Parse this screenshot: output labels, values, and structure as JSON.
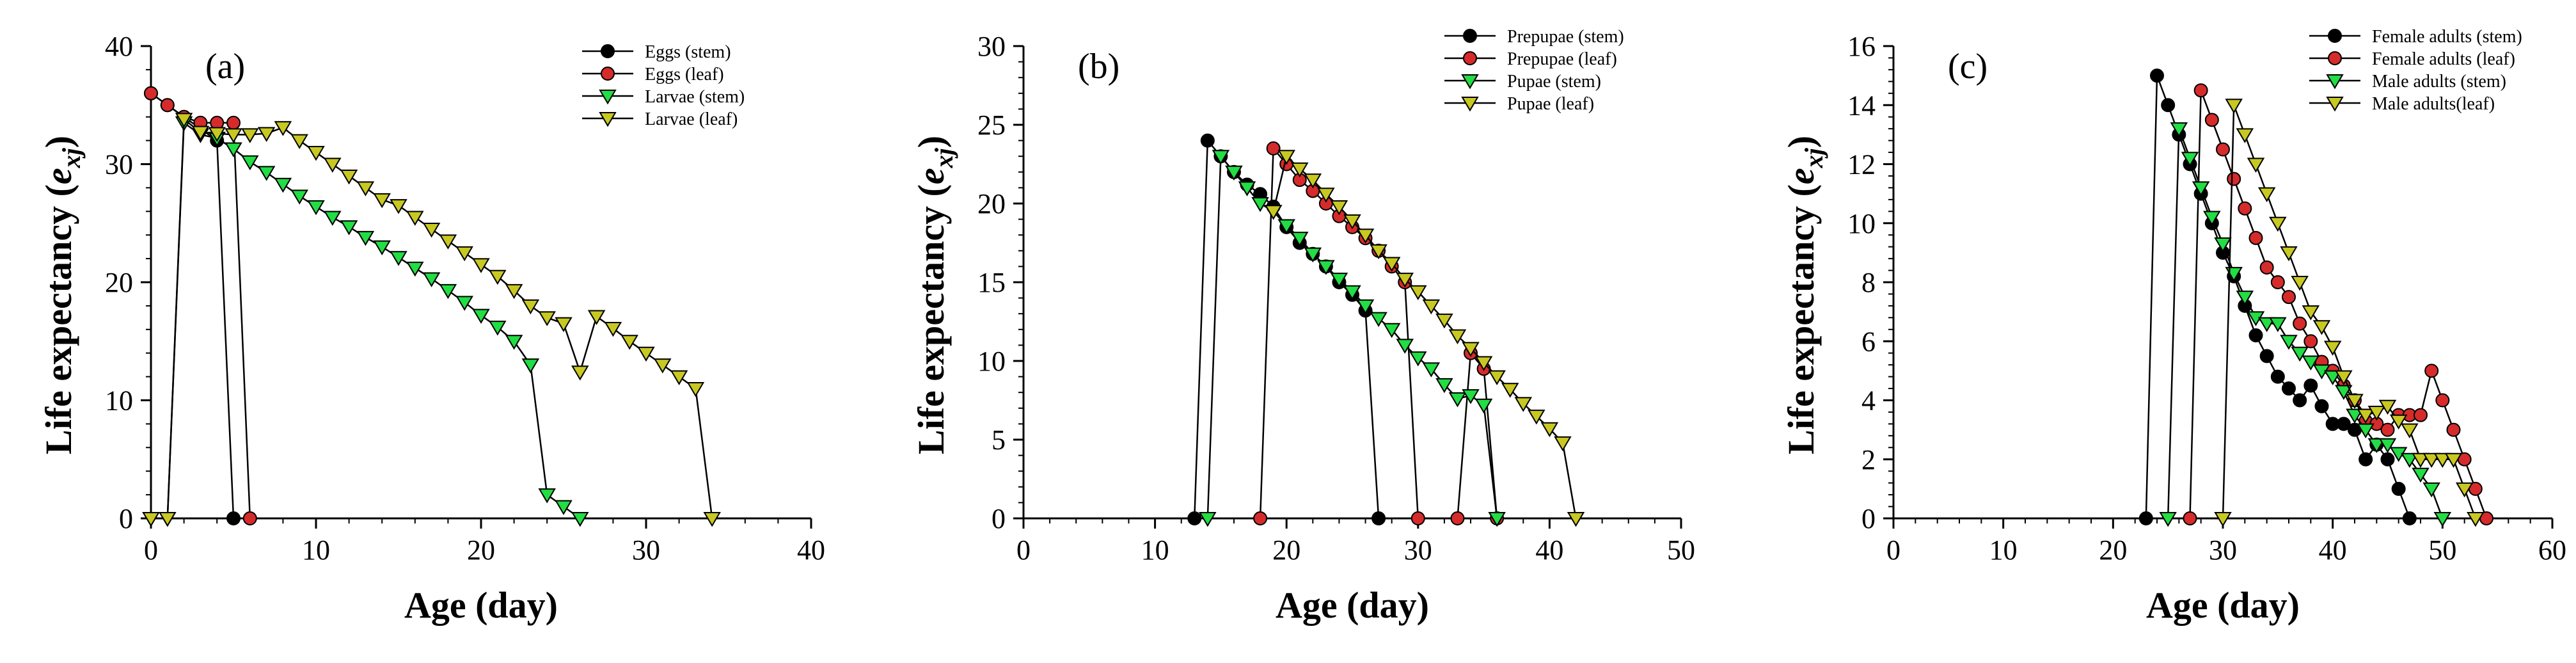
{
  "chart_data": [
    {
      "type": "line",
      "panel": "(a)",
      "xlabel": "Age (day)",
      "ylabel_main": "Life expectancy (",
      "ylabel_var": "e",
      "ylabel_sub": "xj",
      "ylabel_close": ")",
      "xlim": [
        0,
        40
      ],
      "ylim": [
        0,
        40
      ],
      "xticks": [
        0,
        10,
        20,
        30,
        40
      ],
      "yticks": [
        0,
        10,
        20,
        30,
        40
      ],
      "legend_position": "top-right",
      "series": [
        {
          "name": "Eggs (stem)",
          "marker": "circle",
          "color": "#000000",
          "x": [
            0,
            1,
            2,
            3,
            4,
            5
          ],
          "y": [
            36,
            35,
            34,
            33,
            32,
            0
          ]
        },
        {
          "name": "Eggs (leaf)",
          "marker": "circle",
          "color": "#d62b2b",
          "x": [
            0,
            1,
            2,
            3,
            4,
            5,
            6
          ],
          "y": [
            36,
            35,
            34,
            33.5,
            33.5,
            33.5,
            0
          ]
        },
        {
          "name": "Larvae (stem)",
          "marker": "triangle-down",
          "color": "#22dd44",
          "x": [
            0,
            1,
            2,
            3,
            4,
            5,
            6,
            7,
            8,
            9,
            10,
            11,
            12,
            13,
            14,
            15,
            16,
            17,
            18,
            19,
            20,
            21,
            22,
            23,
            24,
            25,
            26
          ],
          "y": [
            0,
            0,
            33.5,
            32.5,
            32.2,
            31.3,
            30.2,
            29.3,
            28.3,
            27.3,
            26.4,
            25.5,
            24.7,
            23.8,
            23,
            22.1,
            21.2,
            20.3,
            19.3,
            18.3,
            17.2,
            16.2,
            15,
            13,
            2,
            1,
            0
          ]
        },
        {
          "name": "Larvae (leaf)",
          "marker": "triangle-down",
          "color": "#c8c822",
          "x": [
            0,
            1,
            2,
            3,
            4,
            5,
            6,
            7,
            8,
            9,
            10,
            11,
            12,
            13,
            14,
            15,
            16,
            17,
            18,
            19,
            20,
            21,
            22,
            23,
            24,
            25,
            26,
            27,
            28,
            29,
            30,
            31,
            32,
            33,
            34
          ],
          "y": [
            0,
            0,
            33.8,
            32.7,
            32.6,
            32.5,
            32.5,
            32.6,
            33.1,
            32,
            31,
            30,
            29,
            28,
            27,
            26.5,
            25.5,
            24.5,
            23.5,
            22.5,
            21.5,
            20.5,
            19.3,
            18,
            17,
            16.5,
            12.4,
            17.1,
            16.1,
            15,
            14,
            13,
            12,
            11,
            0
          ]
        }
      ]
    },
    {
      "type": "line",
      "panel": "(b)",
      "xlabel": "Age (day)",
      "ylabel_main": "Life expectancy (",
      "ylabel_var": "e",
      "ylabel_sub": "xj",
      "ylabel_close": ")",
      "xlim": [
        0,
        50
      ],
      "ylim": [
        0,
        30
      ],
      "xticks": [
        0,
        10,
        20,
        30,
        40,
        50
      ],
      "yticks": [
        0,
        5,
        10,
        15,
        20,
        25,
        30
      ],
      "legend_position": "top-right",
      "series": [
        {
          "name": "Prepupae (stem)",
          "marker": "circle",
          "color": "#000000",
          "x": [
            13,
            14,
            15,
            16,
            17,
            18,
            19,
            20,
            21,
            22,
            23,
            24,
            25,
            26,
            27
          ],
          "y": [
            0,
            24,
            23,
            22,
            21.2,
            20.6,
            19.8,
            18.5,
            17.5,
            16.8,
            16,
            15,
            14.2,
            13.2,
            0
          ]
        },
        {
          "name": "Prepupae (leaf)",
          "marker": "circle",
          "color": "#d62b2b",
          "x": [
            18,
            19,
            20,
            21,
            22,
            23,
            24,
            25,
            26,
            27,
            28,
            29,
            30,
            33,
            34,
            35,
            36
          ],
          "y": [
            0,
            23.5,
            22.5,
            21.5,
            20.8,
            20,
            19.2,
            18.5,
            17.8,
            17,
            16,
            15,
            0,
            0,
            10.5,
            9.5,
            0
          ]
        },
        {
          "name": "Pupae (stem)",
          "marker": "triangle-down",
          "color": "#22dd44",
          "x": [
            14,
            15,
            16,
            17,
            18,
            19,
            20,
            21,
            22,
            23,
            24,
            25,
            26,
            27,
            28,
            29,
            30,
            31,
            32,
            33,
            34,
            35,
            36
          ],
          "y": [
            0,
            23,
            22,
            21,
            20,
            19.5,
            18.6,
            17.8,
            16.8,
            16,
            15.2,
            14.4,
            13.5,
            12.7,
            12,
            11,
            10.2,
            9.5,
            8.5,
            7.6,
            7.8,
            7.2,
            0
          ]
        },
        {
          "name": "Pupae (leaf)",
          "marker": "triangle-down",
          "color": "#c8c822",
          "x": [
            19,
            20,
            21,
            22,
            23,
            24,
            25,
            26,
            27,
            28,
            29,
            30,
            31,
            32,
            33,
            34,
            35,
            36,
            37,
            38,
            39,
            40,
            41,
            42
          ],
          "y": [
            19.5,
            23,
            22.2,
            21.5,
            20.6,
            19.8,
            18.9,
            18,
            17,
            16.2,
            15.2,
            14.4,
            13.5,
            12.6,
            11.6,
            10.8,
            9.9,
            9,
            8.2,
            7.3,
            6.5,
            5.7,
            4.8,
            0
          ]
        }
      ]
    },
    {
      "type": "line",
      "panel": "(c)",
      "xlabel": "Age (day)",
      "ylabel_main": "Life expectancy (",
      "ylabel_var": "e",
      "ylabel_sub": "xj",
      "ylabel_close": ")",
      "xlim": [
        0,
        60
      ],
      "ylim": [
        0,
        16
      ],
      "xticks": [
        0,
        10,
        20,
        30,
        40,
        50,
        60
      ],
      "yticks": [
        0,
        2,
        4,
        6,
        8,
        10,
        12,
        14,
        16
      ],
      "legend_position": "top-right",
      "series": [
        {
          "name": "Female adults (stem)",
          "marker": "circle",
          "color": "#000000",
          "x": [
            23,
            24,
            25,
            26,
            27,
            28,
            29,
            30,
            31,
            32,
            33,
            34,
            35,
            36,
            37,
            38,
            39,
            40,
            41,
            42,
            43,
            44,
            45,
            46,
            47
          ],
          "y": [
            0,
            15,
            14,
            13,
            12,
            11,
            10,
            9,
            8.2,
            7.2,
            6.2,
            5.5,
            4.8,
            4.4,
            4,
            4.5,
            3.8,
            3.2,
            3.2,
            3,
            2,
            2.5,
            2,
            1,
            0
          ]
        },
        {
          "name": "Female adults (leaf)",
          "marker": "circle",
          "color": "#d62b2b",
          "x": [
            27,
            28,
            29,
            30,
            31,
            32,
            33,
            34,
            35,
            36,
            37,
            38,
            39,
            40,
            41,
            42,
            43,
            44,
            45,
            46,
            47,
            48,
            49,
            50,
            51,
            52,
            53,
            54
          ],
          "y": [
            0,
            14.5,
            13.5,
            12.5,
            11.5,
            10.5,
            9.5,
            8.5,
            8,
            7.5,
            6.6,
            6,
            5.3,
            5,
            4.5,
            4,
            3.3,
            3.2,
            3,
            3.5,
            3.5,
            3.5,
            5,
            4,
            3,
            2,
            1,
            0
          ]
        },
        {
          "name": "Male adults (stem)",
          "marker": "triangle-down",
          "color": "#22dd44",
          "x": [
            25,
            26,
            27,
            28,
            29,
            30,
            31,
            32,
            33,
            34,
            35,
            36,
            37,
            38,
            39,
            40,
            41,
            42,
            43,
            44,
            45,
            46,
            47,
            48,
            49,
            50
          ],
          "y": [
            0,
            13.2,
            12.2,
            11.2,
            10.2,
            9.3,
            8.3,
            7.5,
            6.8,
            6.6,
            6.6,
            6,
            5.6,
            5.3,
            5,
            4.8,
            4.3,
            3.5,
            3,
            2.5,
            2.5,
            2.2,
            2,
            1.5,
            1,
            0
          ]
        },
        {
          "name": "Male adults(leaf)",
          "marker": "triangle-down",
          "color": "#c8c822",
          "x": [
            30,
            31,
            32,
            33,
            34,
            35,
            36,
            37,
            38,
            39,
            40,
            41,
            42,
            43,
            44,
            45,
            46,
            47,
            48,
            49,
            50,
            51,
            52,
            53
          ],
          "y": [
            0,
            14,
            13,
            12,
            11,
            10,
            9,
            8,
            7,
            6.5,
            5.8,
            4.8,
            4,
            3.5,
            3.6,
            3.8,
            3.3,
            3,
            2,
            2,
            2,
            2,
            1,
            0
          ]
        }
      ]
    }
  ]
}
